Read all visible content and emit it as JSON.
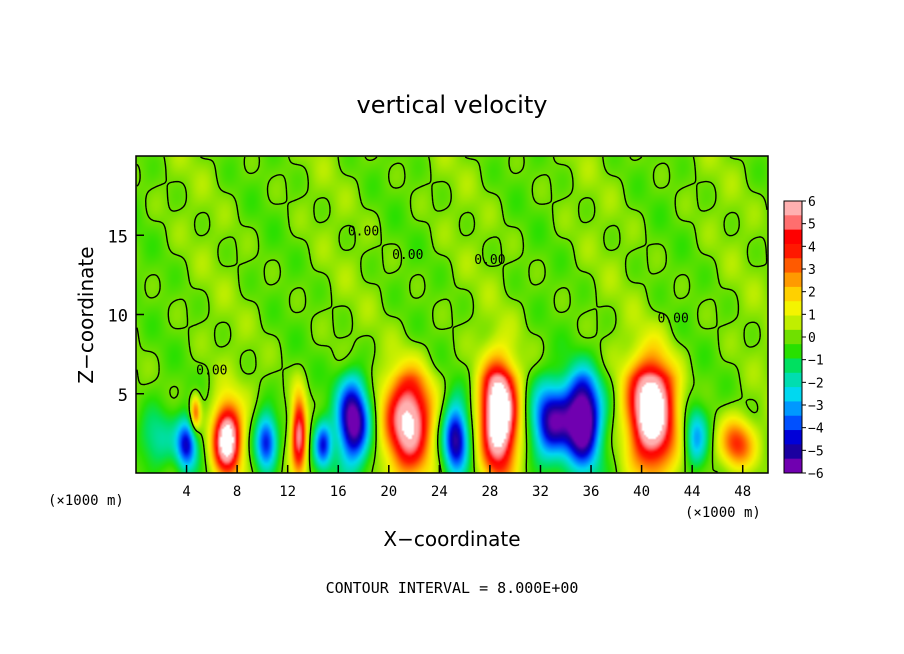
{
  "chart_data": {
    "type": "heatmap",
    "title": "vertical velocity",
    "xlabel": "X−coordinate",
    "ylabel": "Z−coordinate",
    "x_unit_left": "(×1000 m)",
    "x_unit_right": "(×1000 m)",
    "xlim": [
      0,
      50
    ],
    "ylim": [
      0,
      20
    ],
    "xticks": [
      "4",
      "8",
      "12",
      "16",
      "20",
      "24",
      "28",
      "32",
      "36",
      "40",
      "44",
      "48"
    ],
    "yticks": [
      "5",
      "10",
      "15"
    ],
    "colorbar": {
      "ticks": [
        "6",
        "5",
        "4",
        "3",
        "2",
        "1",
        "0",
        "−1",
        "−2",
        "−3",
        "−4",
        "−5",
        "−6"
      ],
      "range": [
        -6,
        6
      ],
      "colors": [
        "#7000b0",
        "#1a00a0",
        "#0000d8",
        "#0050ff",
        "#0098ff",
        "#00d8f0",
        "#00ddb0",
        "#00e060",
        "#28e000",
        "#70e000",
        "#c0ee00",
        "#f4f400",
        "#ffd000",
        "#ff9a00",
        "#ff5a00",
        "#ff1800",
        "#ff0000",
        "#ff6e6e",
        "#ffb0b0"
      ]
    },
    "contour_labels": [
      {
        "text": "0.00",
        "x": 18,
        "y": 15
      },
      {
        "text": "0.00",
        "x": 21.5,
        "y": 13.5
      },
      {
        "text": "0.00",
        "x": 28,
        "y": 13.2
      },
      {
        "text": "0.00",
        "x": 42.5,
        "y": 9.5
      },
      {
        "text": "0.00",
        "x": 6,
        "y": 6.2
      }
    ],
    "cells": [
      {
        "x": 1.5,
        "z": 2,
        "w": -2,
        "sx": 1.6,
        "sz": 2
      },
      {
        "x": 4,
        "z": 1.8,
        "w": -4.5,
        "sx": 0.8,
        "sz": 1.6
      },
      {
        "x": 4.7,
        "z": 3.8,
        "w": 3.5,
        "sx": 0.4,
        "sz": 1.1
      },
      {
        "x": 7.2,
        "z": 2.1,
        "w": 8,
        "sx": 1.1,
        "sz": 2.2
      },
      {
        "x": 10.3,
        "z": 2.0,
        "w": -5,
        "sx": 0.9,
        "sz": 1.8
      },
      {
        "x": 12.9,
        "z": 2.5,
        "w": 6,
        "sx": 0.6,
        "sz": 2.4
      },
      {
        "x": 14.8,
        "z": 1.8,
        "w": -4,
        "sx": 0.7,
        "sz": 1.5
      },
      {
        "x": 17.2,
        "z": 3.3,
        "w": -6.5,
        "sx": 1.3,
        "sz": 2.8
      },
      {
        "x": 21.6,
        "z": 3.3,
        "w": 7,
        "sx": 1.8,
        "sz": 3.2
      },
      {
        "x": 25.3,
        "z": 2.2,
        "w": -5.5,
        "sx": 1.0,
        "sz": 2.2
      },
      {
        "x": 28.7,
        "z": 3.6,
        "w": 9,
        "sx": 1.4,
        "sz": 3.6
      },
      {
        "x": 32.8,
        "z": 3.2,
        "w": -5.5,
        "sx": 1.6,
        "sz": 2.5
      },
      {
        "x": 35.4,
        "z": 3.4,
        "w": -7,
        "sx": 1.4,
        "sz": 3.0
      },
      {
        "x": 40.8,
        "z": 4.0,
        "w": 8.5,
        "sx": 1.8,
        "sz": 3.6
      },
      {
        "x": 44.3,
        "z": 2.2,
        "w": -3,
        "sx": 0.9,
        "sz": 2.0
      },
      {
        "x": 47.5,
        "z": 1.8,
        "w": 4,
        "sx": 1.4,
        "sz": 1.6
      }
    ],
    "footer": "CONTOUR INTERVAL =   8.000E+00"
  }
}
